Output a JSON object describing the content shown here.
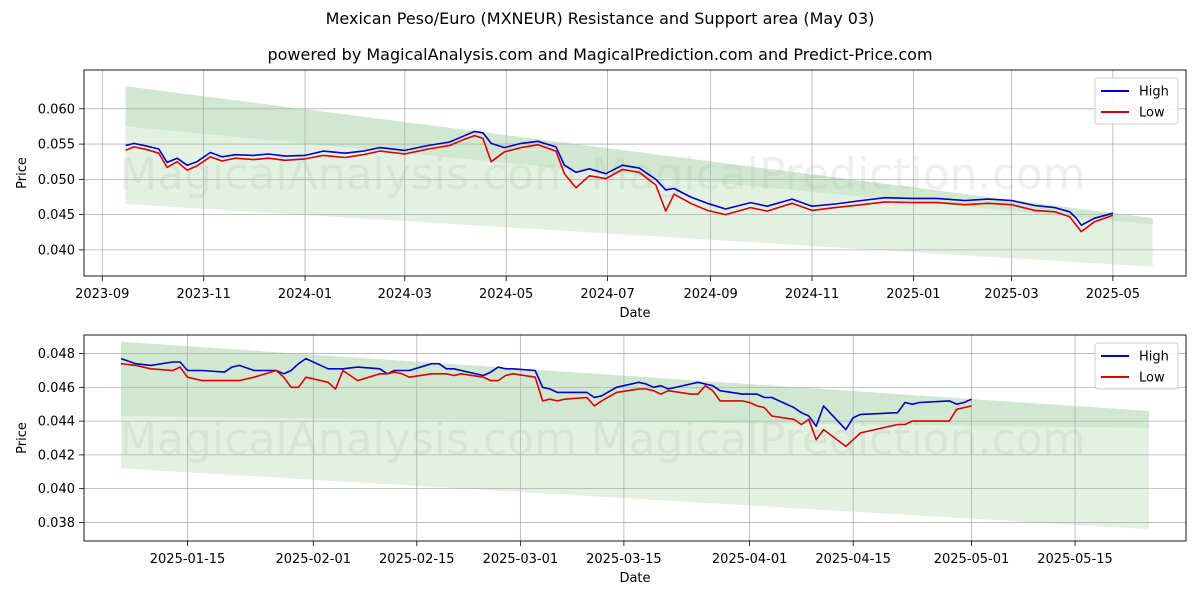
{
  "page": {
    "title": "Mexican Peso/Euro (MXNEUR) Resistance and Support area (May 03)",
    "subtitle": "powered by MagicalAnalysis.com and MagicalPrediction.com and Predict-Price.com",
    "watermark": [
      "MagicalAnalysis.com",
      "MagicalPrediction.com"
    ]
  },
  "colors": {
    "high": "#0000cc",
    "low": "#dd0000",
    "band": "#8fc98f",
    "grid": "#b0b0b0"
  },
  "chart_data": [
    {
      "type": "line",
      "xlabel": "Date",
      "ylabel": "Price",
      "xlim": [
        "2023-08-21",
        "2025-06-14"
      ],
      "ylim": [
        0.0363,
        0.0655
      ],
      "grid": true,
      "legend": "top-right",
      "xticks": [
        "2023-09",
        "2023-11",
        "2024-01",
        "2024-03",
        "2024-05",
        "2024-07",
        "2024-09",
        "2024-11",
        "2025-01",
        "2025-03",
        "2025-05"
      ],
      "yticks": [
        "0.040",
        "0.045",
        "0.050",
        "0.055",
        "0.060"
      ],
      "bands": [
        {
          "start": "2023-09-15",
          "end": "2025-05-25",
          "upper": [
            0.0632,
            0.0445
          ],
          "lower": [
            0.0575,
            0.0436
          ]
        },
        {
          "start": "2023-09-15",
          "end": "2025-05-25",
          "upper": [
            0.0575,
            0.0436
          ],
          "lower": [
            0.0465,
            0.0376
          ]
        }
      ],
      "series": [
        {
          "name": "High",
          "x": [
            "2023-09-15",
            "2023-09-20",
            "2023-09-28",
            "2023-10-05",
            "2023-10-10",
            "2023-10-16",
            "2023-10-22",
            "2023-10-28",
            "2023-11-05",
            "2023-11-12",
            "2023-11-20",
            "2023-12-01",
            "2023-12-10",
            "2023-12-20",
            "2024-01-01",
            "2024-01-12",
            "2024-01-25",
            "2024-02-05",
            "2024-02-15",
            "2024-03-01",
            "2024-03-15",
            "2024-03-28",
            "2024-04-05",
            "2024-04-12",
            "2024-04-17",
            "2024-04-22",
            "2024-04-30",
            "2024-05-10",
            "2024-05-20",
            "2024-05-31",
            "2024-06-05",
            "2024-06-12",
            "2024-06-20",
            "2024-06-30",
            "2024-07-10",
            "2024-07-20",
            "2024-07-30",
            "2024-08-05",
            "2024-08-10",
            "2024-08-20",
            "2024-08-30",
            "2024-09-10",
            "2024-09-25",
            "2024-10-05",
            "2024-10-20",
            "2024-11-01",
            "2024-11-15",
            "2024-12-01",
            "2024-12-15",
            "2025-01-01",
            "2025-01-15",
            "2025-02-01",
            "2025-02-15",
            "2025-03-01",
            "2025-03-15",
            "2025-03-27",
            "2025-04-05",
            "2025-04-09",
            "2025-04-12",
            "2025-04-20",
            "2025-05-01"
          ],
          "values": [
            0.0548,
            0.0551,
            0.0547,
            0.0543,
            0.0524,
            0.053,
            0.052,
            0.0525,
            0.0538,
            0.0532,
            0.0535,
            0.0534,
            0.0536,
            0.0533,
            0.0534,
            0.054,
            0.0537,
            0.054,
            0.0545,
            0.0541,
            0.0548,
            0.0553,
            0.0561,
            0.0568,
            0.0566,
            0.0551,
            0.0545,
            0.0551,
            0.0554,
            0.0546,
            0.052,
            0.051,
            0.0515,
            0.0508,
            0.052,
            0.0516,
            0.05,
            0.0485,
            0.0487,
            0.0475,
            0.0466,
            0.0458,
            0.0467,
            0.0462,
            0.0472,
            0.0462,
            0.0465,
            0.047,
            0.0474,
            0.0473,
            0.0473,
            0.047,
            0.0472,
            0.047,
            0.0463,
            0.046,
            0.0454,
            0.0445,
            0.0435,
            0.0445,
            0.0452
          ]
        },
        {
          "name": "Low",
          "x": [
            "2023-09-15",
            "2023-09-20",
            "2023-09-28",
            "2023-10-05",
            "2023-10-10",
            "2023-10-16",
            "2023-10-22",
            "2023-10-28",
            "2023-11-05",
            "2023-11-12",
            "2023-11-20",
            "2023-12-01",
            "2023-12-10",
            "2023-12-20",
            "2024-01-01",
            "2024-01-12",
            "2024-01-25",
            "2024-02-05",
            "2024-02-15",
            "2024-03-01",
            "2024-03-15",
            "2024-03-28",
            "2024-04-05",
            "2024-04-12",
            "2024-04-17",
            "2024-04-22",
            "2024-04-30",
            "2024-05-10",
            "2024-05-20",
            "2024-05-31",
            "2024-06-05",
            "2024-06-12",
            "2024-06-20",
            "2024-06-30",
            "2024-07-10",
            "2024-07-20",
            "2024-07-30",
            "2024-08-05",
            "2024-08-10",
            "2024-08-20",
            "2024-08-30",
            "2024-09-10",
            "2024-09-25",
            "2024-10-05",
            "2024-10-20",
            "2024-11-01",
            "2024-11-15",
            "2024-12-01",
            "2024-12-15",
            "2025-01-01",
            "2025-01-15",
            "2025-02-01",
            "2025-02-15",
            "2025-03-01",
            "2025-03-15",
            "2025-03-27",
            "2025-04-05",
            "2025-04-09",
            "2025-04-12",
            "2025-04-20",
            "2025-05-01"
          ],
          "values": [
            0.0541,
            0.0546,
            0.0542,
            0.0537,
            0.0517,
            0.0525,
            0.0513,
            0.0519,
            0.0532,
            0.0526,
            0.053,
            0.0528,
            0.053,
            0.0527,
            0.0529,
            0.0534,
            0.0531,
            0.0535,
            0.054,
            0.0536,
            0.0543,
            0.0548,
            0.0556,
            0.0562,
            0.0558,
            0.0525,
            0.0539,
            0.0545,
            0.0549,
            0.054,
            0.0508,
            0.0488,
            0.0505,
            0.0501,
            0.0514,
            0.051,
            0.0492,
            0.0455,
            0.0479,
            0.0466,
            0.0456,
            0.045,
            0.046,
            0.0455,
            0.0466,
            0.0456,
            0.046,
            0.0464,
            0.0468,
            0.0467,
            0.0467,
            0.0464,
            0.0466,
            0.0464,
            0.0456,
            0.0454,
            0.0447,
            0.0435,
            0.0426,
            0.044,
            0.0449
          ]
        }
      ]
    },
    {
      "type": "line",
      "xlabel": "Date",
      "ylabel": "Price",
      "xlim": [
        "2025-01-01",
        "2025-05-30"
      ],
      "ylim": [
        0.0369,
        0.0491
      ],
      "grid": true,
      "legend": "top-right",
      "xticks": [
        "2025-01-15",
        "2025-02-01",
        "2025-02-15",
        "2025-03-01",
        "2025-03-15",
        "2025-04-01",
        "2025-04-15",
        "2025-05-01",
        "2025-05-15"
      ],
      "yticks": [
        "0.038",
        "0.040",
        "0.042",
        "0.044",
        "0.046",
        "0.048"
      ],
      "bands": [
        {
          "start": "2025-01-06",
          "end": "2025-05-25",
          "upper": [
            0.0487,
            0.0446
          ],
          "lower": [
            0.0443,
            0.0436
          ]
        },
        {
          "start": "2025-01-06",
          "end": "2025-05-25",
          "upper": [
            0.0443,
            0.0436
          ],
          "lower": [
            0.0412,
            0.0376
          ]
        }
      ],
      "series": [
        {
          "name": "High",
          "x": [
            "2025-01-06",
            "2025-01-08",
            "2025-01-10",
            "2025-01-13",
            "2025-01-14",
            "2025-01-15",
            "2025-01-17",
            "2025-01-20",
            "2025-01-21",
            "2025-01-22",
            "2025-01-24",
            "2025-01-27",
            "2025-01-28",
            "2025-01-29",
            "2025-01-30",
            "2025-01-31",
            "2025-02-03",
            "2025-02-04",
            "2025-02-05",
            "2025-02-07",
            "2025-02-10",
            "2025-02-11",
            "2025-02-12",
            "2025-02-13",
            "2025-02-14",
            "2025-02-17",
            "2025-02-18",
            "2025-02-19",
            "2025-02-20",
            "2025-02-21",
            "2025-02-24",
            "2025-02-25",
            "2025-02-26",
            "2025-02-27",
            "2025-02-28",
            "2025-03-03",
            "2025-03-04",
            "2025-03-05",
            "2025-03-06",
            "2025-03-07",
            "2025-03-10",
            "2025-03-11",
            "2025-03-12",
            "2025-03-14",
            "2025-03-17",
            "2025-03-18",
            "2025-03-19",
            "2025-03-20",
            "2025-03-21",
            "2025-03-24",
            "2025-03-25",
            "2025-03-26",
            "2025-03-27",
            "2025-03-28",
            "2025-03-31",
            "2025-04-01",
            "2025-04-02",
            "2025-04-03",
            "2025-04-04",
            "2025-04-07",
            "2025-04-08",
            "2025-04-09",
            "2025-04-10",
            "2025-04-11",
            "2025-04-14",
            "2025-04-15",
            "2025-04-16",
            "2025-04-21",
            "2025-04-22",
            "2025-04-23",
            "2025-04-24",
            "2025-04-28",
            "2025-04-29",
            "2025-04-30",
            "2025-05-01"
          ],
          "values": [
            0.0477,
            0.0474,
            0.0473,
            0.0475,
            0.0475,
            0.047,
            0.047,
            0.0469,
            0.0472,
            0.0473,
            0.047,
            0.047,
            0.0468,
            0.047,
            0.0474,
            0.0477,
            0.0471,
            0.0471,
            0.0471,
            0.0472,
            0.0471,
            0.0468,
            0.047,
            0.047,
            0.047,
            0.0474,
            0.0474,
            0.0471,
            0.0471,
            0.047,
            0.0467,
            0.0469,
            0.0472,
            0.0471,
            0.0471,
            0.047,
            0.046,
            0.0459,
            0.0457,
            0.0457,
            0.0457,
            0.0454,
            0.0455,
            0.046,
            0.0463,
            0.0462,
            0.046,
            0.0461,
            0.0459,
            0.0462,
            0.0463,
            0.0462,
            0.0461,
            0.0458,
            0.0456,
            0.0456,
            0.0456,
            0.0454,
            0.0454,
            0.0448,
            0.0445,
            0.0443,
            0.0437,
            0.0449,
            0.0435,
            0.0442,
            0.0444,
            0.0445,
            0.0451,
            0.045,
            0.0451,
            0.0452,
            0.045,
            0.0451,
            0.0453
          ]
        },
        {
          "name": "Low",
          "x": [
            "2025-01-06",
            "2025-01-08",
            "2025-01-10",
            "2025-01-13",
            "2025-01-14",
            "2025-01-15",
            "2025-01-17",
            "2025-01-20",
            "2025-01-21",
            "2025-01-22",
            "2025-01-24",
            "2025-01-27",
            "2025-01-28",
            "2025-01-29",
            "2025-01-30",
            "2025-01-31",
            "2025-02-03",
            "2025-02-04",
            "2025-02-05",
            "2025-02-07",
            "2025-02-10",
            "2025-02-11",
            "2025-02-12",
            "2025-02-13",
            "2025-02-14",
            "2025-02-17",
            "2025-02-18",
            "2025-02-19",
            "2025-02-20",
            "2025-02-21",
            "2025-02-24",
            "2025-02-25",
            "2025-02-26",
            "2025-02-27",
            "2025-02-28",
            "2025-03-03",
            "2025-03-04",
            "2025-03-05",
            "2025-03-06",
            "2025-03-07",
            "2025-03-10",
            "2025-03-11",
            "2025-03-12",
            "2025-03-14",
            "2025-03-17",
            "2025-03-18",
            "2025-03-19",
            "2025-03-20",
            "2025-03-21",
            "2025-03-24",
            "2025-03-25",
            "2025-03-26",
            "2025-03-27",
            "2025-03-28",
            "2025-03-31",
            "2025-04-01",
            "2025-04-02",
            "2025-04-03",
            "2025-04-04",
            "2025-04-07",
            "2025-04-08",
            "2025-04-09",
            "2025-04-10",
            "2025-04-11",
            "2025-04-14",
            "2025-04-15",
            "2025-04-16",
            "2025-04-21",
            "2025-04-22",
            "2025-04-23",
            "2025-04-24",
            "2025-04-28",
            "2025-04-29",
            "2025-04-30",
            "2025-05-01"
          ],
          "values": [
            0.0474,
            0.0473,
            0.0471,
            0.047,
            0.0472,
            0.0466,
            0.0464,
            0.0464,
            0.0464,
            0.0464,
            0.0466,
            0.047,
            0.0466,
            0.046,
            0.046,
            0.0466,
            0.0463,
            0.0459,
            0.047,
            0.0464,
            0.0468,
            0.0468,
            0.0469,
            0.0468,
            0.0466,
            0.0468,
            0.0468,
            0.0468,
            0.0467,
            0.0468,
            0.0466,
            0.0464,
            0.0464,
            0.0467,
            0.0468,
            0.0466,
            0.0452,
            0.0453,
            0.0452,
            0.0453,
            0.0454,
            0.0449,
            0.0452,
            0.0457,
            0.0459,
            0.0459,
            0.0458,
            0.0456,
            0.0458,
            0.0456,
            0.0456,
            0.0461,
            0.0458,
            0.0452,
            0.0452,
            0.0451,
            0.0449,
            0.0448,
            0.0443,
            0.0441,
            0.0438,
            0.0441,
            0.0429,
            0.0435,
            0.0425,
            0.0429,
            0.0433,
            0.0438,
            0.0438,
            0.044,
            0.044,
            0.044,
            0.0447,
            0.0448,
            0.0449
          ]
        }
      ]
    }
  ]
}
